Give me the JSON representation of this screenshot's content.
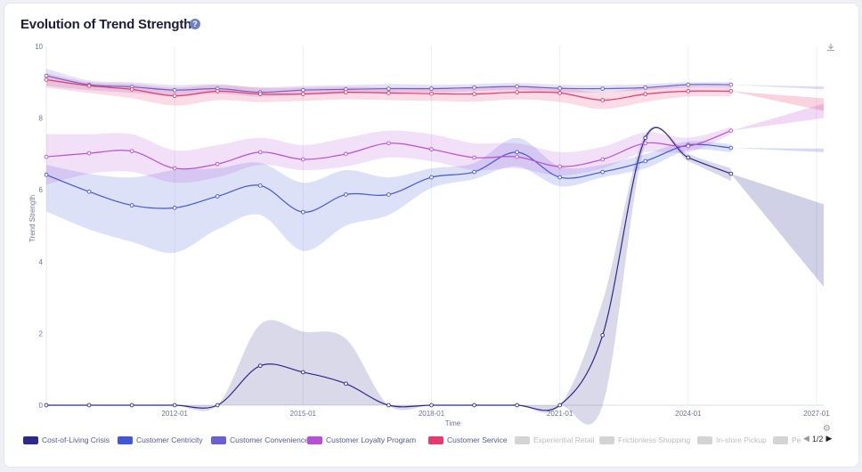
{
  "title": "Evolution of Trend Strength",
  "help_icon": "question-circle-icon",
  "download_icon": "download-icon",
  "settings_icon": "gear-icon",
  "pager": {
    "text": "1/2"
  },
  "chart_data": {
    "type": "line",
    "title": "Evolution of Trend Strength",
    "xlabel": "Time",
    "ylabel": "Trend Strength",
    "ylim": [
      0,
      10
    ],
    "yticks": [
      0,
      2,
      4,
      6,
      8,
      10
    ],
    "xlim": [
      "2009-01",
      "2027-03"
    ],
    "xticks": [
      {
        "x": "2012-01",
        "label": "2012-01"
      },
      {
        "x": "2015-01",
        "label": "2015-01"
      },
      {
        "x": "2018-01",
        "label": "2018-01"
      },
      {
        "x": "2021-01",
        "label": "2021-01"
      },
      {
        "x": "2024-01",
        "label": "2024-01"
      },
      {
        "x": "2027-01",
        "label": "2027-01"
      }
    ],
    "x": [
      "2009-01",
      "2010-01",
      "2011-01",
      "2012-01",
      "2013-01",
      "2014-01",
      "2015-01",
      "2016-01",
      "2017-01",
      "2018-01",
      "2019-01",
      "2020-01",
      "2021-01",
      "2022-01",
      "2023-01",
      "2024-01",
      "2025-01"
    ],
    "series": [
      {
        "name": "Cost-of-Living Crisis",
        "color": "#2b2a8c",
        "visible": true,
        "values": [
          0,
          0,
          0,
          0,
          0,
          1.1,
          0.92,
          0.6,
          0,
          0,
          0,
          0,
          0,
          1.95,
          7.45,
          6.9,
          6.45
        ],
        "lower": [
          0,
          0,
          0,
          0,
          0,
          0,
          0,
          0,
          0,
          0,
          0,
          0,
          0,
          0,
          7.3,
          6.8,
          6.25
        ],
        "upper": [
          0,
          0,
          0,
          0,
          0,
          2.25,
          2.05,
          1.85,
          0,
          0,
          0,
          0,
          0,
          2.9,
          7.55,
          7.0,
          6.6
        ],
        "forecast_to": [
          5.6,
          3.3
        ]
      },
      {
        "name": "Customer Centricity",
        "color": "#4257d8",
        "visible": true,
        "values": [
          6.42,
          5.95,
          5.57,
          5.5,
          5.82,
          6.12,
          5.38,
          5.87,
          5.87,
          6.35,
          6.5,
          7.05,
          6.35,
          6.5,
          6.8,
          7.25,
          7.17
        ],
        "lower": [
          5.4,
          4.9,
          4.55,
          4.25,
          4.9,
          5.3,
          4.3,
          5.0,
          5.3,
          6.05,
          6.3,
          6.65,
          6.1,
          6.35,
          6.6,
          7.1,
          7.05
        ],
        "upper": [
          6.7,
          6.45,
          6.35,
          6.55,
          6.6,
          6.75,
          6.2,
          6.55,
          6.35,
          6.6,
          6.75,
          7.45,
          6.65,
          6.7,
          7.0,
          7.35,
          7.27
        ],
        "forecast_to": [
          7.15,
          7.05
        ]
      },
      {
        "name": "Customer Convenience",
        "color": "#6a5fd6",
        "visible": true,
        "values": [
          9.18,
          8.93,
          8.87,
          8.78,
          8.82,
          8.72,
          8.78,
          8.8,
          8.82,
          8.82,
          8.85,
          8.88,
          8.83,
          8.82,
          8.85,
          8.93,
          8.93
        ],
        "lower": [
          8.9,
          8.78,
          8.7,
          8.62,
          8.68,
          8.6,
          8.65,
          8.68,
          8.7,
          8.72,
          8.75,
          8.78,
          8.72,
          8.72,
          8.78,
          8.85,
          8.85
        ],
        "upper": [
          9.38,
          9.05,
          9.0,
          8.92,
          8.95,
          8.85,
          8.9,
          8.92,
          8.95,
          8.93,
          8.95,
          8.98,
          8.93,
          8.92,
          8.95,
          9.0,
          9.0
        ],
        "forecast_to": [
          8.88,
          8.8
        ]
      },
      {
        "name": "Customer Loyalty Program",
        "color": "#b94fd8",
        "visible": true,
        "values": [
          6.92,
          7.02,
          7.08,
          6.6,
          6.72,
          7.05,
          6.85,
          7.0,
          7.3,
          7.13,
          6.9,
          6.92,
          6.65,
          6.85,
          7.3,
          7.22,
          7.65
        ],
        "lower": [
          6.15,
          6.45,
          6.5,
          6.2,
          6.35,
          6.7,
          6.55,
          6.65,
          6.9,
          6.8,
          6.55,
          6.6,
          6.4,
          6.6,
          7.05,
          7.05,
          7.55
        ],
        "upper": [
          7.55,
          7.55,
          7.55,
          7.1,
          7.25,
          7.45,
          7.25,
          7.45,
          7.65,
          7.55,
          7.3,
          7.3,
          7.05,
          7.2,
          7.6,
          7.45,
          7.75
        ],
        "forecast_to": [
          8.4,
          8.0
        ]
      },
      {
        "name": "Customer Service",
        "color": "#e8386e",
        "visible": true,
        "values": [
          9.07,
          8.9,
          8.8,
          8.62,
          8.75,
          8.67,
          8.67,
          8.72,
          8.7,
          8.68,
          8.67,
          8.72,
          8.7,
          8.5,
          8.67,
          8.75,
          8.75
        ],
        "lower": [
          8.85,
          8.7,
          8.55,
          8.35,
          8.5,
          8.45,
          8.48,
          8.52,
          8.5,
          8.48,
          8.46,
          8.52,
          8.45,
          8.25,
          8.45,
          8.6,
          8.6
        ],
        "upper": [
          9.25,
          9.0,
          8.95,
          8.85,
          8.92,
          8.85,
          8.85,
          8.87,
          8.85,
          8.85,
          8.85,
          8.88,
          8.85,
          8.72,
          8.85,
          8.88,
          8.88
        ],
        "forecast_to": [
          8.55,
          8.2
        ]
      },
      {
        "name": "Experiential Retail",
        "color": "#cccccc",
        "visible": false
      },
      {
        "name": "Frictionless Shopping",
        "color": "#cccccc",
        "visible": false
      },
      {
        "name": "In-store Pickup",
        "color": "#cccccc",
        "visible": false
      },
      {
        "name": "Pe",
        "color": "#cccccc",
        "visible": false
      }
    ],
    "grid": "vertical",
    "legend_position": "bottom"
  }
}
